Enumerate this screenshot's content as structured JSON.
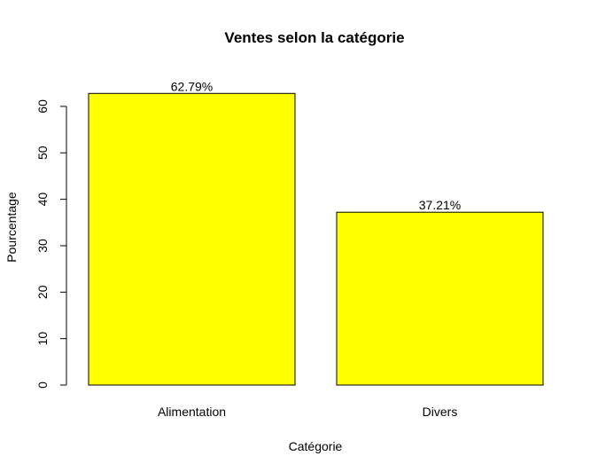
{
  "chart_data": {
    "type": "bar",
    "title": "Ventes selon la catégorie",
    "xlabel": "Catégorie",
    "ylabel": "Pourcentage",
    "categories": [
      "Alimentation",
      "Divers"
    ],
    "values": [
      62.79,
      37.21
    ],
    "value_labels": [
      "62.79%",
      "37.21%"
    ],
    "yticks": [
      "0",
      "10",
      "20",
      "30",
      "40",
      "50",
      "60"
    ],
    "ylim": [
      0,
      60
    ],
    "grid": false,
    "bar_color": "#ffff00"
  }
}
